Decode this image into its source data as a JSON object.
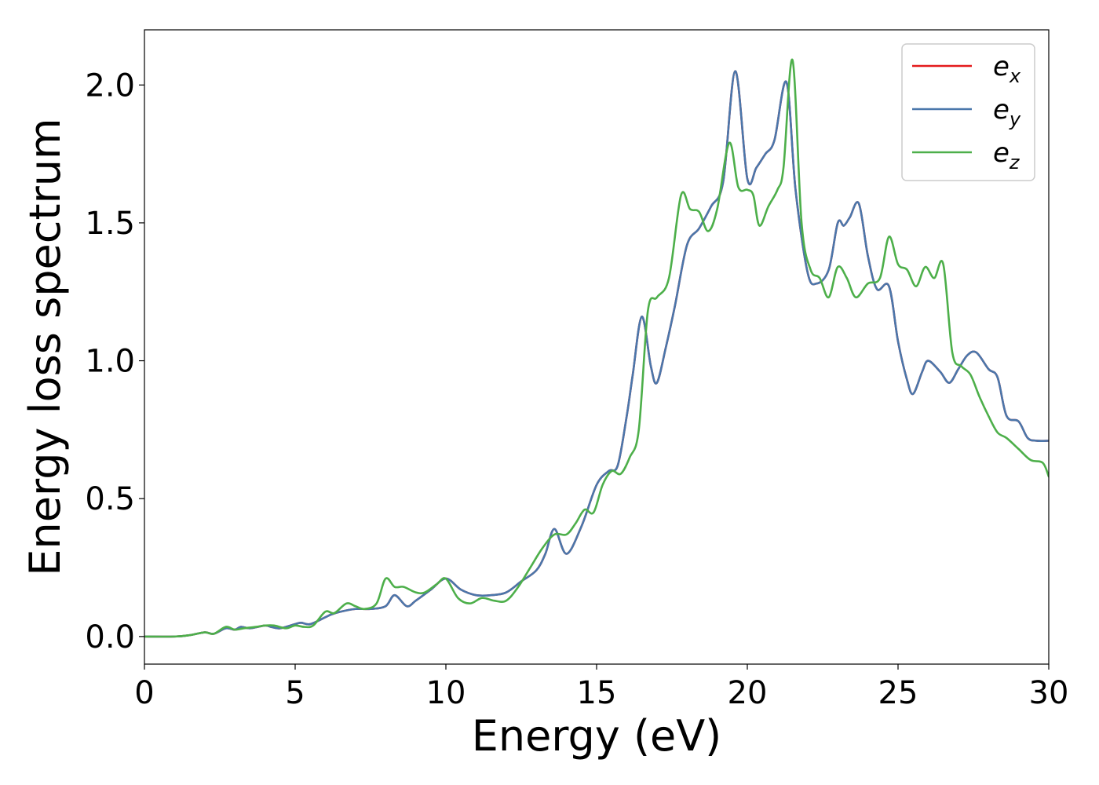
{
  "chart_data": {
    "type": "line",
    "xlabel": "Energy (eV)",
    "ylabel": "Energy loss spectrum",
    "xlim": [
      0,
      30
    ],
    "ylim": [
      -0.1,
      2.2
    ],
    "xticks": [
      0,
      5,
      10,
      15,
      20,
      25,
      30
    ],
    "xtick_labels": [
      "0",
      "5",
      "10",
      "15",
      "20",
      "25",
      "30"
    ],
    "yticks": [
      0.0,
      0.5,
      1.0,
      1.5,
      2.0
    ],
    "ytick_labels": [
      "0.0",
      "0.5",
      "1.0",
      "1.5",
      "2.0"
    ],
    "grid": false,
    "legend_position": "top-right",
    "series": [
      {
        "name": "e_x",
        "label_base": "e",
        "label_sub": "x",
        "color": "#e41a1c",
        "x": [
          0,
          1,
          1.5,
          2,
          2.3,
          2.7,
          3,
          3.2,
          3.5,
          4,
          4.2,
          4.5,
          5,
          5.2,
          5.5,
          6,
          6.2,
          6.5,
          7,
          7.5,
          8,
          8.3,
          8.7,
          9,
          9.5,
          10,
          10.5,
          11,
          11.5,
          12,
          12.5,
          13,
          13.3,
          13.6,
          14,
          14.5,
          15,
          15.4,
          15.7,
          16,
          16.2,
          16.5,
          16.8,
          17,
          17.3,
          17.6,
          18,
          18.4,
          18.8,
          19.2,
          19.6,
          20,
          20.3,
          20.6,
          20.9,
          21.3,
          21.6,
          22,
          22.3,
          22.7,
          23,
          23.2,
          23.4,
          23.7,
          24,
          24.3,
          24.7,
          25,
          25.3,
          25.5,
          25.8,
          26,
          26.4,
          26.7,
          27,
          27.3,
          27.6,
          28,
          28.3,
          28.6,
          29,
          29.3,
          29.6,
          30
        ],
        "y": [
          0,
          0,
          0.005,
          0.015,
          0.01,
          0.03,
          0.025,
          0.035,
          0.03,
          0.04,
          0.035,
          0.03,
          0.045,
          0.05,
          0.045,
          0.07,
          0.08,
          0.09,
          0.1,
          0.1,
          0.11,
          0.15,
          0.11,
          0.13,
          0.17,
          0.21,
          0.17,
          0.15,
          0.15,
          0.16,
          0.2,
          0.24,
          0.3,
          0.39,
          0.3,
          0.4,
          0.55,
          0.6,
          0.62,
          0.8,
          0.95,
          1.16,
          0.98,
          0.92,
          1.05,
          1.2,
          1.42,
          1.48,
          1.56,
          1.65,
          2.05,
          1.66,
          1.7,
          1.75,
          1.8,
          2.01,
          1.62,
          1.32,
          1.28,
          1.33,
          1.5,
          1.49,
          1.52,
          1.57,
          1.38,
          1.26,
          1.27,
          1.07,
          0.93,
          0.88,
          0.96,
          1.0,
          0.96,
          0.92,
          0.97,
          1.02,
          1.03,
          0.97,
          0.94,
          0.8,
          0.78,
          0.72,
          0.71,
          0.71
        ]
      },
      {
        "name": "e_y",
        "label_base": "e",
        "label_sub": "y",
        "color": "#4a77ab",
        "x": [
          0,
          1,
          1.5,
          2,
          2.3,
          2.7,
          3,
          3.2,
          3.5,
          4,
          4.2,
          4.5,
          5,
          5.2,
          5.5,
          6,
          6.2,
          6.5,
          7,
          7.5,
          8,
          8.3,
          8.7,
          9,
          9.5,
          10,
          10.5,
          11,
          11.5,
          12,
          12.5,
          13,
          13.3,
          13.6,
          14,
          14.5,
          15,
          15.4,
          15.7,
          16,
          16.2,
          16.5,
          16.8,
          17,
          17.3,
          17.6,
          18,
          18.4,
          18.8,
          19.2,
          19.6,
          20,
          20.3,
          20.6,
          20.9,
          21.3,
          21.6,
          22,
          22.3,
          22.7,
          23,
          23.2,
          23.4,
          23.7,
          24,
          24.3,
          24.7,
          25,
          25.3,
          25.5,
          25.8,
          26,
          26.4,
          26.7,
          27,
          27.3,
          27.6,
          28,
          28.3,
          28.6,
          29,
          29.3,
          29.6,
          30
        ],
        "y": [
          0,
          0,
          0.005,
          0.015,
          0.01,
          0.03,
          0.025,
          0.035,
          0.03,
          0.04,
          0.035,
          0.03,
          0.045,
          0.05,
          0.045,
          0.07,
          0.08,
          0.09,
          0.1,
          0.1,
          0.11,
          0.15,
          0.11,
          0.13,
          0.17,
          0.21,
          0.17,
          0.15,
          0.15,
          0.16,
          0.2,
          0.24,
          0.3,
          0.39,
          0.3,
          0.4,
          0.55,
          0.6,
          0.62,
          0.8,
          0.95,
          1.16,
          0.98,
          0.92,
          1.05,
          1.2,
          1.42,
          1.48,
          1.56,
          1.65,
          2.05,
          1.66,
          1.7,
          1.75,
          1.8,
          2.01,
          1.62,
          1.32,
          1.28,
          1.33,
          1.5,
          1.49,
          1.52,
          1.57,
          1.38,
          1.26,
          1.27,
          1.07,
          0.93,
          0.88,
          0.96,
          1.0,
          0.96,
          0.92,
          0.97,
          1.02,
          1.03,
          0.97,
          0.94,
          0.8,
          0.78,
          0.72,
          0.71,
          0.71
        ]
      },
      {
        "name": "e_z",
        "label_base": "e",
        "label_sub": "z",
        "color": "#4daf4a",
        "x": [
          0,
          1,
          1.5,
          2,
          2.3,
          2.7,
          3,
          3.3,
          3.7,
          4,
          4.3,
          4.7,
          5,
          5.3,
          5.6,
          6,
          6.3,
          6.7,
          7,
          7.3,
          7.7,
          8,
          8.3,
          8.6,
          9,
          9.3,
          9.7,
          10,
          10.4,
          10.8,
          11.2,
          11.6,
          12,
          12.4,
          12.8,
          13.2,
          13.6,
          14,
          14.3,
          14.6,
          14.9,
          15.2,
          15.5,
          15.8,
          16.1,
          16.4,
          16.7,
          17,
          17.4,
          17.8,
          18.1,
          18.4,
          18.7,
          19,
          19.4,
          19.7,
          20,
          20.2,
          20.4,
          20.7,
          21,
          21.2,
          21.5,
          21.8,
          22.1,
          22.4,
          22.7,
          23,
          23.3,
          23.6,
          24,
          24.4,
          24.7,
          25,
          25.3,
          25.6,
          25.9,
          26.2,
          26.5,
          26.8,
          27.1,
          27.4,
          27.7,
          28,
          28.3,
          28.6,
          29,
          29.4,
          29.8,
          30
        ],
        "y": [
          0,
          0,
          0.005,
          0.015,
          0.01,
          0.035,
          0.025,
          0.03,
          0.035,
          0.04,
          0.04,
          0.03,
          0.04,
          0.035,
          0.04,
          0.09,
          0.085,
          0.12,
          0.11,
          0.1,
          0.12,
          0.21,
          0.18,
          0.18,
          0.16,
          0.16,
          0.19,
          0.21,
          0.14,
          0.12,
          0.14,
          0.13,
          0.13,
          0.18,
          0.25,
          0.32,
          0.37,
          0.37,
          0.41,
          0.46,
          0.45,
          0.55,
          0.6,
          0.59,
          0.65,
          0.75,
          1.18,
          1.23,
          1.3,
          1.6,
          1.55,
          1.54,
          1.47,
          1.55,
          1.79,
          1.63,
          1.62,
          1.6,
          1.49,
          1.56,
          1.62,
          1.7,
          2.09,
          1.5,
          1.33,
          1.3,
          1.23,
          1.34,
          1.3,
          1.23,
          1.28,
          1.3,
          1.45,
          1.35,
          1.33,
          1.27,
          1.34,
          1.3,
          1.35,
          1.03,
          0.98,
          0.95,
          0.87,
          0.8,
          0.74,
          0.72,
          0.68,
          0.64,
          0.63,
          0.58
        ]
      }
    ]
  }
}
